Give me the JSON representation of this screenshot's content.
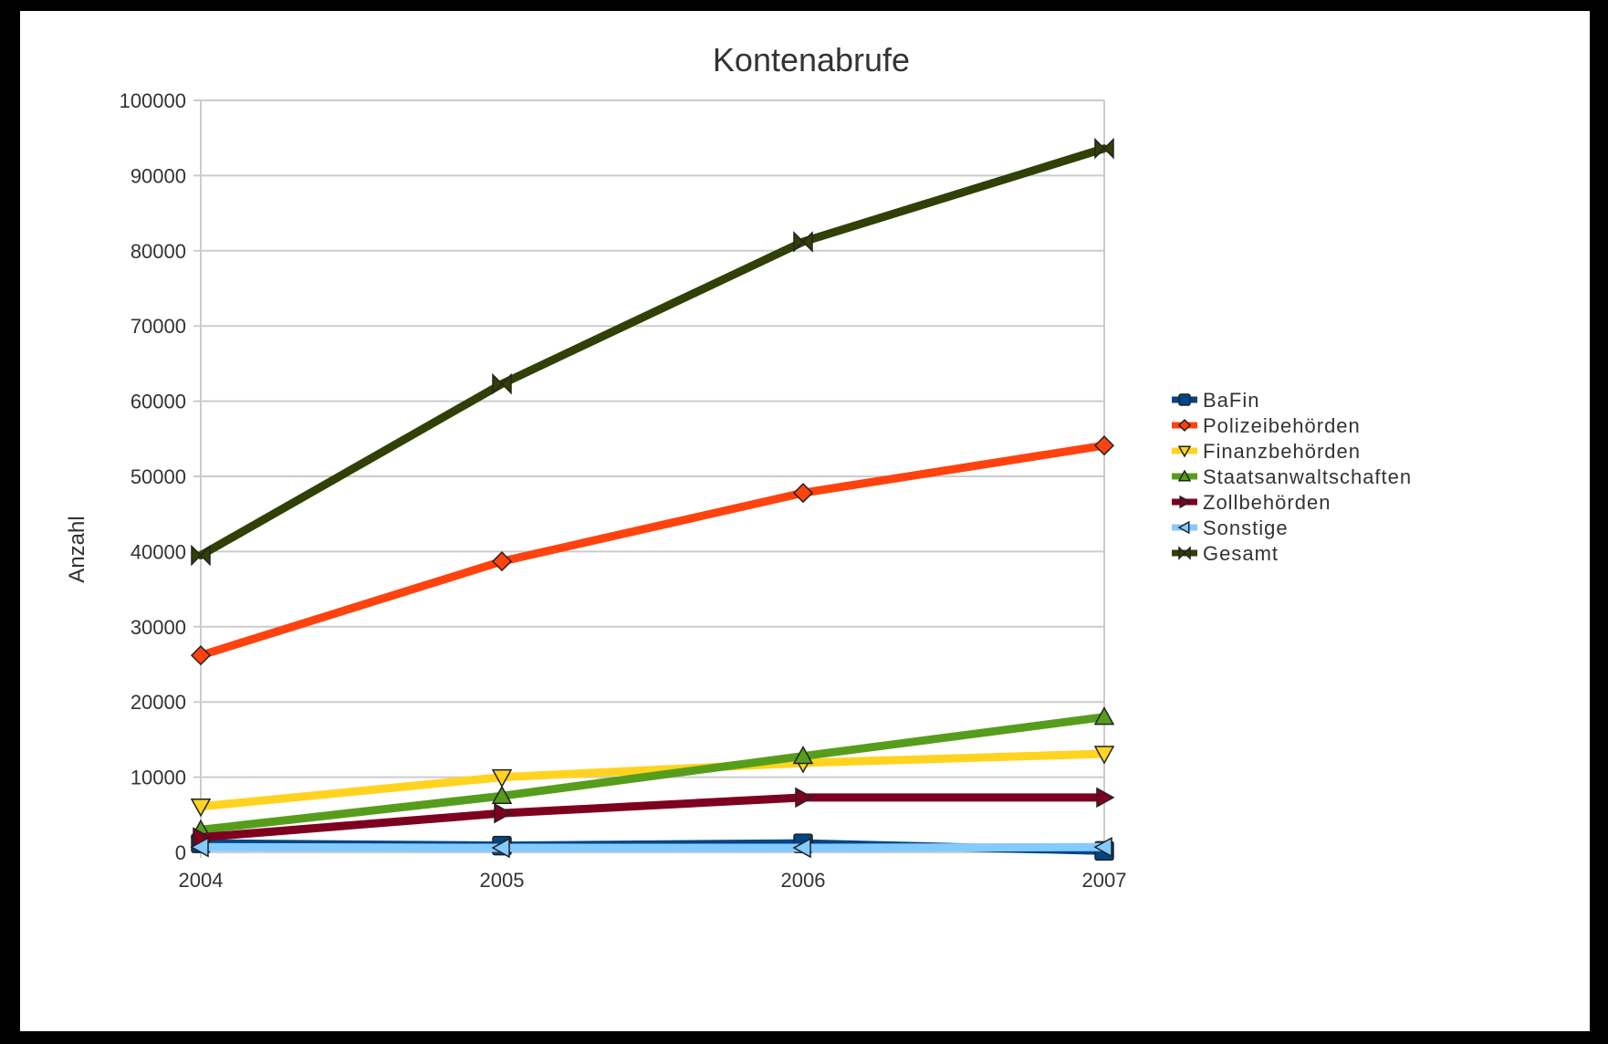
{
  "chart_data": {
    "type": "line",
    "title": "Kontenabrufe",
    "xlabel": "",
    "ylabel": "Anzahl",
    "x": [
      "2004",
      "2005",
      "2006",
      "2007"
    ],
    "ylim": [
      0,
      100000
    ],
    "yticks": [
      "0",
      "10000",
      "20000",
      "30000",
      "40000",
      "50000",
      "60000",
      "70000",
      "80000",
      "90000",
      "100000"
    ],
    "grid": true,
    "legend_position": "right",
    "series": [
      {
        "name": "BaFin",
        "values": [
          1200,
          900,
          1200,
          200
        ],
        "color": "#004586",
        "marker": "square"
      },
      {
        "name": "Polizeibehörden",
        "values": [
          26200,
          38700,
          47800,
          54100
        ],
        "color": "#ff420e",
        "marker": "diamond"
      },
      {
        "name": "Finanzbehörden",
        "values": [
          6100,
          10000,
          11900,
          13100
        ],
        "color": "#ffd320",
        "marker": "triangle-down"
      },
      {
        "name": "Staatsanwaltschaften",
        "values": [
          3000,
          7500,
          12800,
          18000
        ],
        "color": "#579d1c",
        "marker": "triangle-up"
      },
      {
        "name": "Zollbehörden",
        "values": [
          2000,
          5200,
          7300,
          7300
        ],
        "color": "#7e0021",
        "marker": "triangle-right"
      },
      {
        "name": "Sonstige",
        "values": [
          700,
          600,
          600,
          700
        ],
        "color": "#83caff",
        "marker": "triangle-left"
      },
      {
        "name": "Gesamt",
        "values": [
          39500,
          62300,
          81200,
          93600
        ],
        "color": "#314004",
        "marker": "bowtie"
      }
    ]
  }
}
